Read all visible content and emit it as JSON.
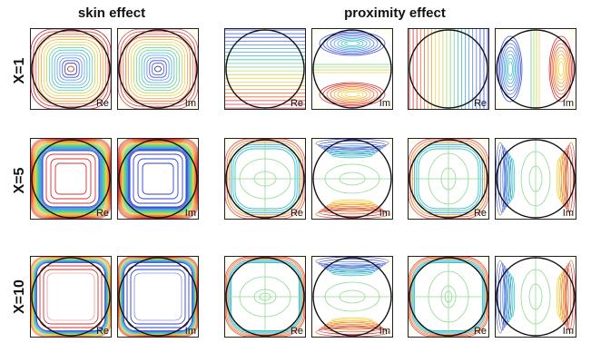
{
  "headers": {
    "skin": "skin effect",
    "proximity": "proximity effect"
  },
  "rows": [
    {
      "label": "X=1",
      "panels": [
        {
          "tag": "Re",
          "pattern": "skin",
          "X": 1
        },
        {
          "tag": "Im",
          "pattern": "skin",
          "X": 1
        },
        {
          "tag": "Re",
          "pattern": "proxH",
          "X": 1
        },
        {
          "tag": "Im",
          "pattern": "proxH",
          "X": 1
        },
        {
          "tag": "Re",
          "pattern": "proxV",
          "X": 1
        },
        {
          "tag": "Im",
          "pattern": "proxV",
          "X": 1
        }
      ]
    },
    {
      "label": "X=5",
      "panels": [
        {
          "tag": "Re",
          "pattern": "skin",
          "X": 5
        },
        {
          "tag": "Im",
          "pattern": "skin",
          "X": 5
        },
        {
          "tag": "Re",
          "pattern": "proxH",
          "X": 5
        },
        {
          "tag": "Im",
          "pattern": "proxH",
          "X": 5
        },
        {
          "tag": "Re",
          "pattern": "proxV",
          "X": 5
        },
        {
          "tag": "Im",
          "pattern": "proxV",
          "X": 5
        }
      ]
    },
    {
      "label": "X=10",
      "panels": [
        {
          "tag": "Re",
          "pattern": "skin",
          "X": 10
        },
        {
          "tag": "Im",
          "pattern": "skin",
          "X": 10
        },
        {
          "tag": "Re",
          "pattern": "proxH",
          "X": 10
        },
        {
          "tag": "Im",
          "pattern": "proxH",
          "X": 10
        },
        {
          "tag": "Re",
          "pattern": "proxV",
          "X": 10
        },
        {
          "tag": "Im",
          "pattern": "proxV",
          "X": 10
        }
      ]
    }
  ]
}
